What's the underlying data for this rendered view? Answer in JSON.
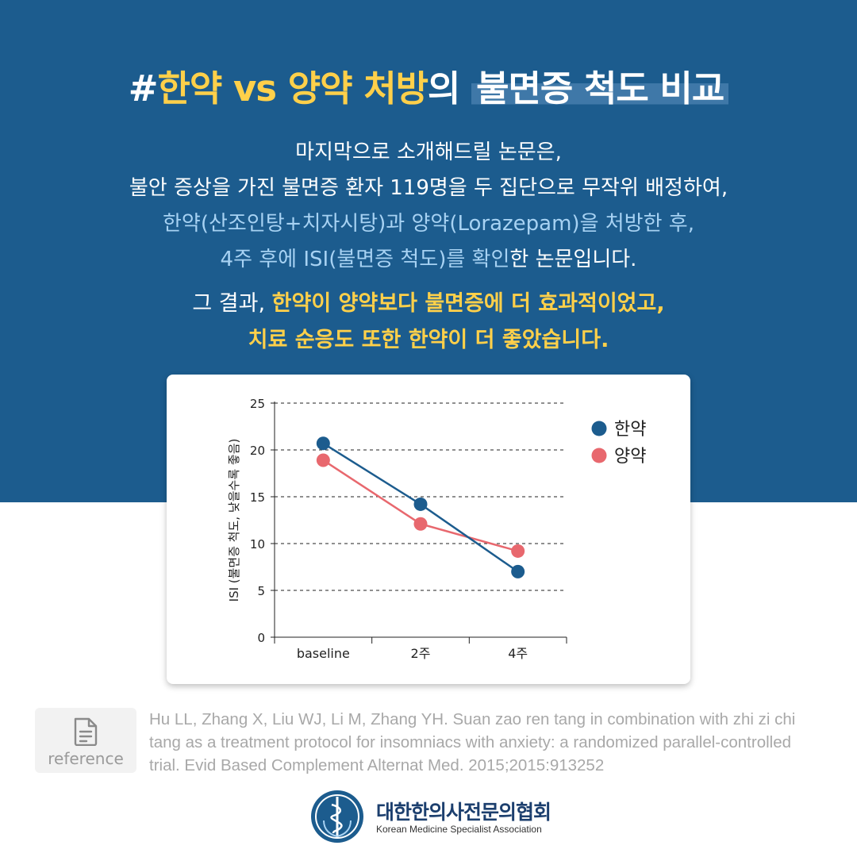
{
  "title": {
    "hash": "#",
    "part1": "한약 vs 양약 처방",
    "part2": "의 ",
    "part3": "불면증 척도 비교"
  },
  "body": {
    "line1": "마지막으로 소개해드릴 논문은,",
    "line2": "불안 증상을 가진 불면증 환자 119명을 두 집단으로 무작위 배정하여,",
    "line3": "한약(산조인탕+치자시탕)과 양약(Lorazepam)을 처방한 후,",
    "line4a": "4주 후에 ISI(불면증 척도)를 확인",
    "line4b": "한 논문입니다."
  },
  "result": {
    "prefix": "그 결과, ",
    "line1": "한약이 양약보다 불면증에 더 효과적이었고,",
    "line2": "치료 순응도 또한 한약이 더 좋았습니다."
  },
  "chart_data": {
    "type": "line",
    "categories": [
      "baseline",
      "2주",
      "4주"
    ],
    "series": [
      {
        "name": "한약",
        "values": [
          20.7,
          14.2,
          7.0
        ],
        "color": "#1c5c8e"
      },
      {
        "name": "양약",
        "values": [
          18.9,
          12.1,
          9.2
        ],
        "color": "#e8686e"
      }
    ],
    "ylabel": "ISI (불면증 척도, 낮을수록 좋음)",
    "ylim": [
      0,
      25
    ],
    "yticks": [
      0,
      5,
      10,
      15,
      20,
      25
    ],
    "grid": true,
    "grid_style": "dashed",
    "legend_position": "top-right"
  },
  "reference": {
    "label": "reference",
    "text": "Hu LL, Zhang X, Liu WJ, Li M, Zhang YH. Suan zao ren tang in combination with zhi zi chi tang as a treatment protocol for insomniacs with anxiety: a randomized parallel-controlled trial. Evid Based Complement Alternat Med. 2015;2015:913252"
  },
  "logo": {
    "name": "대한한의사전문의협회",
    "sub": "Korean Medicine Specialist Association"
  },
  "colors": {
    "band": "#1c5c8e",
    "accent_yellow": "#ffd04a",
    "accent_blue_text": "#a7d2f3"
  }
}
